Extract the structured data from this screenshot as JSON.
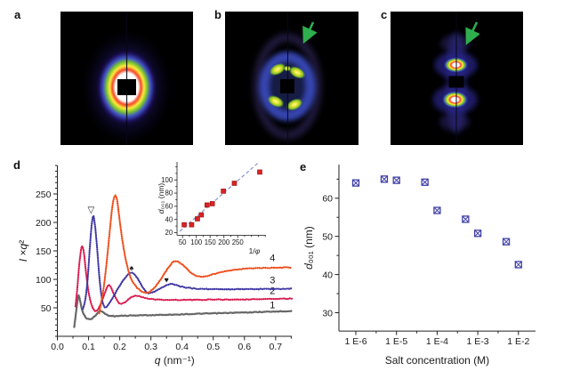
{
  "figure": {
    "panels": {
      "a": "a",
      "b": "b",
      "c": "c",
      "d": "d",
      "e": "e"
    }
  },
  "colors": {
    "arrow_green": "#2fae4e",
    "curve1_gray": "#676767",
    "curve2_red": "#da1a4e",
    "curve3_blue": "#3f37a2",
    "curve4_orange": "#ee4d1a",
    "inset_marker_red": "#db2323",
    "inset_trendline": "#8893c9",
    "panel_e_marker_blue": "#4040a8"
  },
  "chart_data": [
    {
      "id": "panel-d-main",
      "type": "line",
      "title": "",
      "xlabel_parts": [
        {
          "t": "q",
          "i": 1
        },
        {
          "t": " (nm⁻¹)"
        }
      ],
      "ylabel_parts": [
        {
          "t": "I ",
          "i": 1
        },
        {
          "t": "×"
        },
        {
          "t": "q",
          "i": 1
        },
        {
          "t": "²"
        }
      ],
      "xlim": [
        0,
        0.752
      ],
      "ylim": [
        0,
        300
      ],
      "grid": false,
      "xticks": [
        {
          "v": 0,
          "label": "0.0"
        },
        {
          "v": 0.1,
          "label": "0.1"
        },
        {
          "v": 0.2,
          "label": "0.2"
        },
        {
          "v": 0.3,
          "label": "0.3"
        },
        {
          "v": 0.4,
          "label": "0.4"
        },
        {
          "v": 0.5,
          "label": "0.5"
        },
        {
          "v": 0.6,
          "label": "0.6"
        },
        {
          "v": 0.7,
          "label": "0.7"
        }
      ],
      "xminor_step": 0.05,
      "yticks": [
        {
          "v": 50,
          "label": "50"
        },
        {
          "v": 100,
          "label": "100"
        },
        {
          "v": 150,
          "label": "150"
        },
        {
          "v": 200,
          "label": "200"
        },
        {
          "v": 250,
          "label": "250"
        }
      ],
      "yminor_step": 10,
      "annotations": [
        {
          "symbol": "▽",
          "x": 0.108,
          "y": 222
        },
        {
          "symbol": "♠",
          "x": 0.238,
          "y": 120
        },
        {
          "symbol": "♥",
          "x": 0.35,
          "y": 99
        }
      ],
      "series": [
        {
          "name": "1",
          "color": "#676767",
          "label_pos": [
            0.69,
            49
          ],
          "points": [
            [
              0.054,
              16
            ],
            [
              0.059,
              38
            ],
            [
              0.064,
              60
            ],
            [
              0.068,
              72
            ],
            [
              0.073,
              62
            ],
            [
              0.08,
              45
            ],
            [
              0.09,
              34
            ],
            [
              0.1,
              30
            ],
            [
              0.112,
              31.5
            ],
            [
              0.125,
              38.5
            ],
            [
              0.137,
              44.5
            ],
            [
              0.148,
              41.5
            ],
            [
              0.16,
              37.5
            ],
            [
              0.175,
              35.5
            ],
            [
              0.19,
              35.5
            ],
            [
              0.21,
              36
            ],
            [
              0.24,
              36.5
            ],
            [
              0.28,
              37
            ],
            [
              0.33,
              37.5
            ],
            [
              0.39,
              38.5
            ],
            [
              0.45,
              39.5
            ],
            [
              0.52,
              40.5
            ],
            [
              0.58,
              41.5
            ],
            [
              0.64,
              42.5
            ],
            [
              0.7,
              43.5
            ],
            [
              0.752,
              44.5
            ]
          ]
        },
        {
          "name": "2",
          "color": "#da1a4e",
          "label_pos": [
            0.69,
            74
          ],
          "points": [
            [
              0.058,
              52
            ],
            [
              0.064,
              85
            ],
            [
              0.07,
              125
            ],
            [
              0.076,
              152
            ],
            [
              0.08,
              158
            ],
            [
              0.085,
              147
            ],
            [
              0.092,
              112
            ],
            [
              0.1,
              78
            ],
            [
              0.11,
              55
            ],
            [
              0.122,
              44
            ],
            [
              0.135,
              52
            ],
            [
              0.148,
              70
            ],
            [
              0.158,
              84
            ],
            [
              0.165,
              90
            ],
            [
              0.172,
              86
            ],
            [
              0.182,
              73
            ],
            [
              0.195,
              60
            ],
            [
              0.205,
              57
            ],
            [
              0.22,
              61
            ],
            [
              0.235,
              68
            ],
            [
              0.25,
              71
            ],
            [
              0.265,
              70
            ],
            [
              0.285,
              67
            ],
            [
              0.31,
              65
            ],
            [
              0.35,
              64
            ],
            [
              0.4,
              64
            ],
            [
              0.45,
              64
            ],
            [
              0.5,
              64.5
            ],
            [
              0.56,
              64.5
            ],
            [
              0.62,
              65
            ],
            [
              0.68,
              65.5
            ],
            [
              0.752,
              66
            ]
          ]
        },
        {
          "name": "3",
          "color": "#3f37a2",
          "label_pos": [
            0.69,
            93
          ],
          "points": [
            [
              0.082,
              48
            ],
            [
              0.09,
              66
            ],
            [
              0.097,
              100
            ],
            [
              0.104,
              155
            ],
            [
              0.11,
              196
            ],
            [
              0.115,
              211
            ],
            [
              0.12,
              198
            ],
            [
              0.127,
              158
            ],
            [
              0.135,
              102
            ],
            [
              0.143,
              66
            ],
            [
              0.152,
              51
            ],
            [
              0.162,
              55
            ],
            [
              0.172,
              63
            ],
            [
              0.185,
              75
            ],
            [
              0.2,
              89
            ],
            [
              0.215,
              101
            ],
            [
              0.228,
              109
            ],
            [
              0.238,
              112
            ],
            [
              0.25,
              107
            ],
            [
              0.262,
              97
            ],
            [
              0.275,
              85
            ],
            [
              0.29,
              76
            ],
            [
              0.305,
              77
            ],
            [
              0.32,
              81
            ],
            [
              0.34,
              87
            ],
            [
              0.355,
              91
            ],
            [
              0.37,
              91.5
            ],
            [
              0.385,
              89
            ],
            [
              0.4,
              87
            ],
            [
              0.43,
              84.5
            ],
            [
              0.47,
              83
            ],
            [
              0.52,
              82.5
            ],
            [
              0.58,
              82.5
            ],
            [
              0.65,
              83
            ],
            [
              0.7,
              83
            ],
            [
              0.752,
              83.5
            ]
          ]
        },
        {
          "name": "4",
          "color": "#ee4d1a",
          "label_pos": [
            0.69,
            132
          ],
          "points": [
            [
              0.134,
              40
            ],
            [
              0.14,
              58
            ],
            [
              0.147,
              80
            ],
            [
              0.153,
              105
            ],
            [
              0.16,
              140
            ],
            [
              0.168,
              185
            ],
            [
              0.175,
              222
            ],
            [
              0.181,
              242
            ],
            [
              0.186,
              247
            ],
            [
              0.192,
              237
            ],
            [
              0.2,
              203
            ],
            [
              0.21,
              163
            ],
            [
              0.222,
              128
            ],
            [
              0.235,
              103
            ],
            [
              0.25,
              89
            ],
            [
              0.265,
              81
            ],
            [
              0.28,
              77
            ],
            [
              0.295,
              78
            ],
            [
              0.315,
              88
            ],
            [
              0.335,
              103
            ],
            [
              0.355,
              120
            ],
            [
              0.37,
              130
            ],
            [
              0.38,
              132
            ],
            [
              0.39,
              130
            ],
            [
              0.405,
              124
            ],
            [
              0.42,
              116
            ],
            [
              0.435,
              109
            ],
            [
              0.45,
              105.5
            ],
            [
              0.465,
              105
            ],
            [
              0.48,
              106
            ],
            [
              0.5,
              109
            ],
            [
              0.53,
              113
            ],
            [
              0.57,
              117
            ],
            [
              0.61,
              119
            ],
            [
              0.66,
              120
            ],
            [
              0.71,
              120.5
            ],
            [
              0.752,
              121
            ]
          ]
        }
      ]
    },
    {
      "id": "panel-d-inset",
      "type": "scatter",
      "title": "",
      "xlabel_parts": [
        {
          "t": "1/"
        },
        {
          "t": "φ",
          "i": 1
        }
      ],
      "ylabel_parts": [
        {
          "t": "d",
          "i": 1
        },
        {
          "t": "₀₀₁ (nm)"
        }
      ],
      "xlim": [
        30,
        352
      ],
      "ylim": [
        16,
        127.4
      ],
      "grid": false,
      "xticks": [
        {
          "v": 50,
          "label": "50"
        },
        {
          "v": 100,
          "label": "100"
        },
        {
          "v": 150,
          "label": "150"
        },
        {
          "v": 200,
          "label": "200"
        },
        {
          "v": 250,
          "label": "250"
        }
      ],
      "xminor_step": 25,
      "yticks": [
        {
          "v": 20,
          "label": "20"
        },
        {
          "v": 40,
          "label": "40"
        },
        {
          "v": 60,
          "label": "60"
        },
        {
          "v": 80,
          "label": "80"
        },
        {
          "v": 100,
          "label": "100"
        }
      ],
      "yminor_step": 10,
      "marker": {
        "shape": "filled-square",
        "color": "#db2323",
        "edge": "#8d0f0f",
        "size": 5
      },
      "trendline": {
        "from": [
          40,
          22
        ],
        "to": [
          327,
          127
        ],
        "color": "#8893c9",
        "dash": "4 2.6"
      },
      "points": [
        [
          56,
          32
        ],
        [
          83,
          32
        ],
        [
          104,
          41
        ],
        [
          118,
          47
        ],
        [
          139,
          62
        ],
        [
          158,
          64
        ],
        [
          198,
          83
        ],
        [
          238,
          95
        ],
        [
          330,
          112
        ]
      ]
    },
    {
      "id": "panel-e",
      "type": "scatter",
      "title": "",
      "xscale": "log",
      "xlabel_parts": [
        {
          "t": "Salt concentration (M)"
        }
      ],
      "ylabel_parts": [
        {
          "t": "d",
          "i": 1
        },
        {
          "t": "₀₀₁ (nm)"
        }
      ],
      "xlim_log": [
        -6.42,
        -1.58
      ],
      "ylim": [
        25.2,
        68.8
      ],
      "grid": false,
      "xticks": [
        {
          "log": -6,
          "label": "1 E-6"
        },
        {
          "log": -5,
          "label": "1 E-5"
        },
        {
          "log": -4,
          "label": "1 E-4"
        },
        {
          "log": -3,
          "label": "1 E-3"
        },
        {
          "log": -2,
          "label": "1 E-2"
        }
      ],
      "xminor_logs": [
        -5.5,
        -4.5,
        -3.5,
        -2.5
      ],
      "yticks": [
        {
          "v": 30,
          "label": "30"
        },
        {
          "v": 40,
          "label": "40"
        },
        {
          "v": 50,
          "label": "50"
        },
        {
          "v": 60,
          "label": "60"
        }
      ],
      "yminor": [
        35,
        45,
        55,
        65
      ],
      "marker": {
        "shape": "crossed-square",
        "color": "#4040a8",
        "size": 7
      },
      "points": [
        [
          1e-06,
          64
        ],
        [
          5e-06,
          65
        ],
        [
          1e-05,
          64.7
        ],
        [
          5e-05,
          64.2
        ],
        [
          0.0001,
          56.8
        ],
        [
          0.0005,
          54.5
        ],
        [
          0.001,
          50.8
        ],
        [
          0.005,
          48.6
        ],
        [
          0.01,
          42.6
        ]
      ]
    }
  ]
}
